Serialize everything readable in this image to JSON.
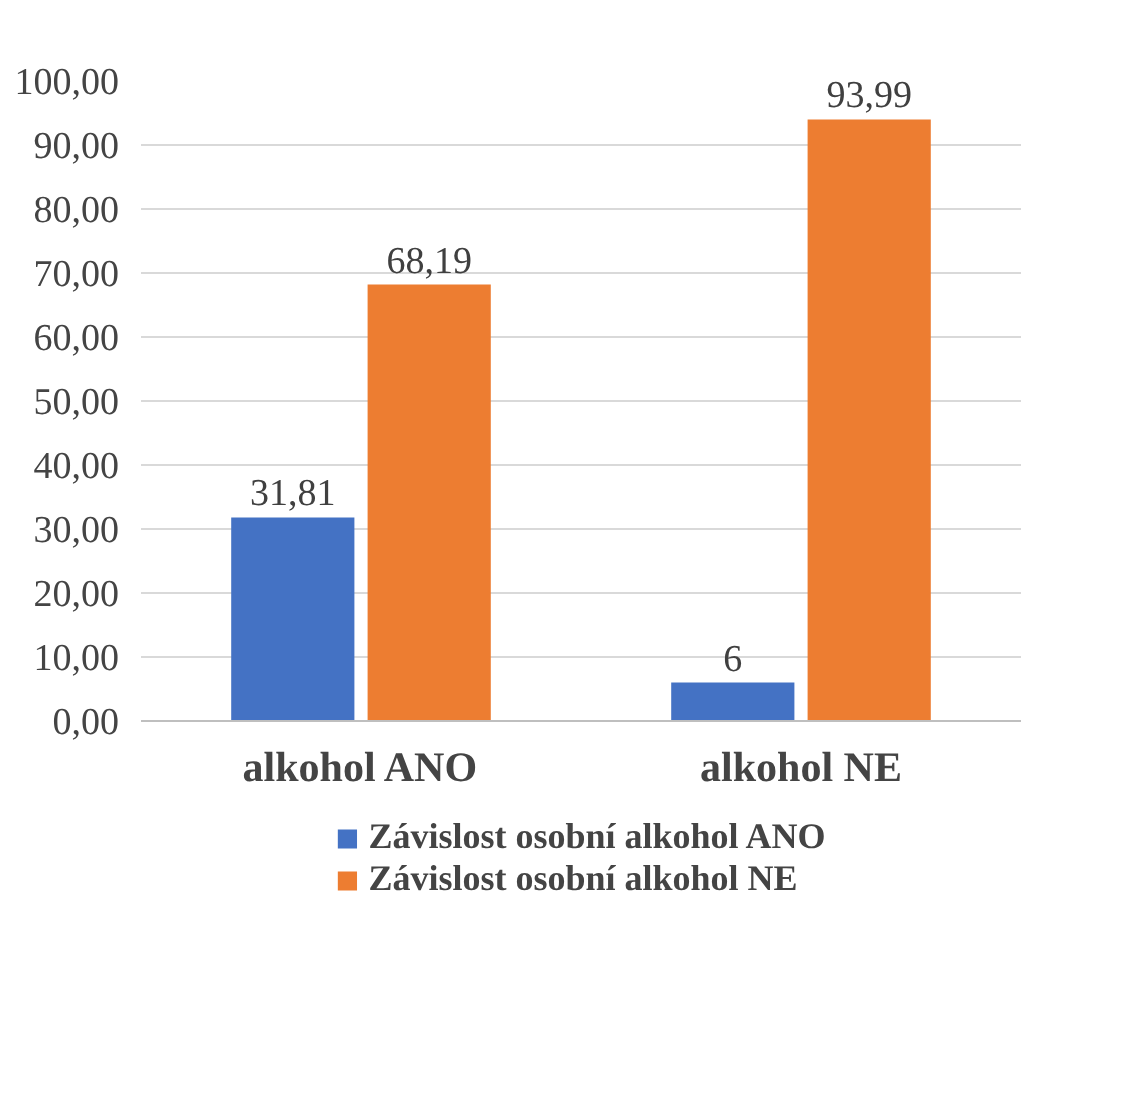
{
  "chart_data": {
    "type": "bar",
    "categories": [
      "alkohol ANO",
      "alkohol NE"
    ],
    "series": [
      {
        "name": "Závislost osobní alkohol ANO",
        "color": "#4472c4",
        "values": [
          31.81,
          6
        ],
        "value_labels": [
          "31,81",
          "6"
        ]
      },
      {
        "name": "Závislost osobní alkohol NE",
        "color": "#ed7d31",
        "values": [
          68.19,
          93.99
        ],
        "value_labels": [
          "68,19",
          "93,99"
        ]
      }
    ],
    "ylim": [
      0,
      100
    ],
    "yticks": [
      {
        "value": 0,
        "label": "0,00"
      },
      {
        "value": 10,
        "label": "10,00"
      },
      {
        "value": 20,
        "label": "20,00"
      },
      {
        "value": 30,
        "label": "30,00"
      },
      {
        "value": 40,
        "label": "40,00"
      },
      {
        "value": 50,
        "label": "50,00"
      },
      {
        "value": 60,
        "label": "60,00"
      },
      {
        "value": 70,
        "label": "70,00"
      },
      {
        "value": 80,
        "label": "80,00"
      },
      {
        "value": 90,
        "label": "90,00"
      },
      {
        "value": 100,
        "label": "100,00"
      }
    ],
    "grid": "y",
    "legend": "bottom"
  }
}
